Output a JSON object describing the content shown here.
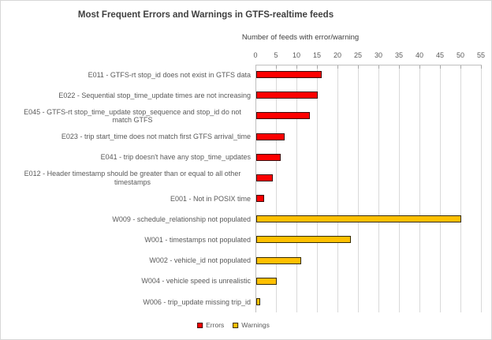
{
  "chart": {
    "title": "Most Frequent Errors and Warnings in GTFS-realtime feeds",
    "axis_title": "Number of feeds with error/warning",
    "colors": {
      "error_fill": "#fe0000",
      "error_border": "#3a0c0c",
      "warning_fill": "#ffc000",
      "warning_border": "#332a00",
      "gridline": "#d9d9d9",
      "axis": "#bfbfbf",
      "text": "#595959",
      "title_text": "#3f3f3f"
    },
    "legend": [
      {
        "label": "Errors",
        "series": "Errors"
      },
      {
        "label": "Warnings",
        "series": "Warnings"
      }
    ]
  },
  "chart_data": {
    "type": "bar",
    "orientation": "horizontal",
    "title": "Most Frequent Errors and Warnings in GTFS-realtime feeds",
    "xlabel": "Number of feeds with error/warning",
    "ylabel": "",
    "xlim": [
      0,
      55
    ],
    "xticks": [
      0,
      5,
      10,
      15,
      20,
      25,
      30,
      35,
      40,
      45,
      50,
      55
    ],
    "grid": true,
    "legend_position": "bottom",
    "categories": [
      "E011 - GTFS-rt stop_id does not exist in GTFS data",
      "E022 - Sequential stop_time_update times are not increasing",
      "E045 - GTFS-rt stop_time_update stop_sequence and stop_id do not match GTFS",
      "E023 - trip start_time does not match first GTFS arrival_time",
      "E041 - trip doesn't have any stop_time_updates",
      "E012 - Header timestamp should be greater than or equal to all other timestamps",
      "E001 - Not in POSIX time",
      "W009 - schedule_relationship not populated",
      "W001 - timestamps not populated",
      "W002 - vehicle_id not populated",
      "W004 - vehicle speed is unrealistic",
      "W006 - trip_update missing trip_id"
    ],
    "items": [
      {
        "code": "E011",
        "value": 16,
        "series": "Errors"
      },
      {
        "code": "E022",
        "value": 15,
        "series": "Errors"
      },
      {
        "code": "E045",
        "value": 13,
        "series": "Errors"
      },
      {
        "code": "E023",
        "value": 7,
        "series": "Errors"
      },
      {
        "code": "E041",
        "value": 6,
        "series": "Errors"
      },
      {
        "code": "E012",
        "value": 4,
        "series": "Errors"
      },
      {
        "code": "E001",
        "value": 2,
        "series": "Errors"
      },
      {
        "code": "W009",
        "value": 50,
        "series": "Warnings"
      },
      {
        "code": "W001",
        "value": 23,
        "series": "Warnings"
      },
      {
        "code": "W002",
        "value": 11,
        "series": "Warnings"
      },
      {
        "code": "W004",
        "value": 5,
        "series": "Warnings"
      },
      {
        "code": "W006",
        "value": 1,
        "series": "Warnings"
      }
    ]
  }
}
